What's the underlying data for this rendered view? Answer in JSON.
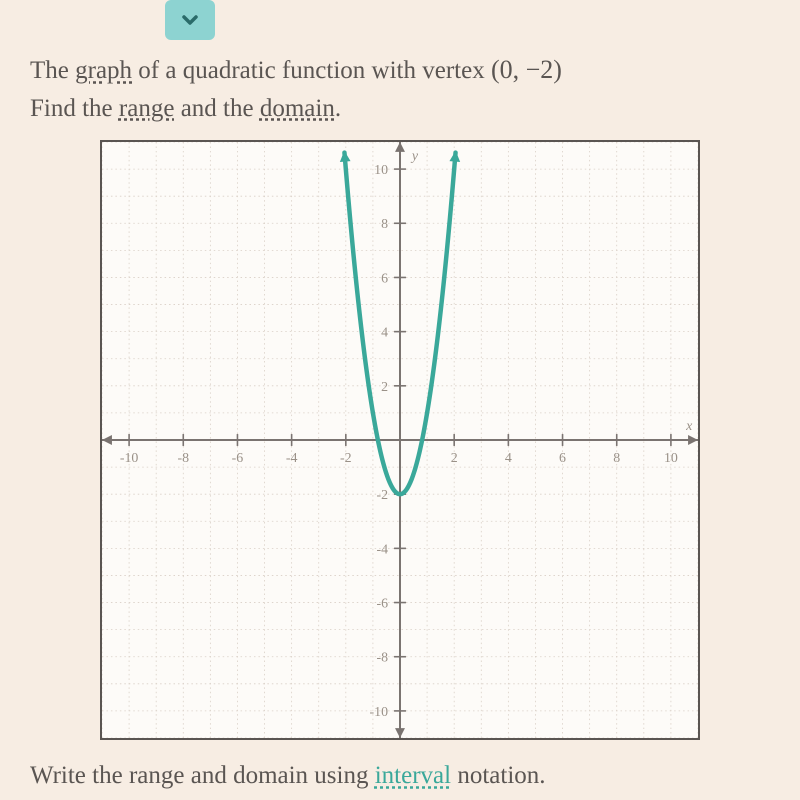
{
  "dropdown": {
    "icon": "chevron-down"
  },
  "question": {
    "line1_pre": "The ",
    "word_graph": "graph",
    "line1_mid": " of a quadratic function with vertex ",
    "vertex": "(0, −2)",
    "line2_pre": "Find the ",
    "word_range": "range",
    "line2_mid": " and the ",
    "word_domain": "domain",
    "line2_end": "."
  },
  "bottom": {
    "pre": "Write the range and domain using ",
    "word_interval": "interval",
    "post": " notation."
  },
  "chart": {
    "type": "line",
    "background_color": "#fdfbf8",
    "grid_color": "#d9cfc6",
    "axis_color": "#7a7370",
    "tick_color": "#7a7370",
    "label_color": "#9a9188",
    "label_fontsize": 14,
    "axis_label_fontsize": 14,
    "xlim": [
      -11,
      11
    ],
    "ylim": [
      -11,
      11
    ],
    "major_ticks": [
      -10,
      -8,
      -6,
      -4,
      -2,
      2,
      4,
      6,
      8,
      10
    ],
    "minor_step": 1,
    "x_axis_label": "x",
    "y_axis_label": "y",
    "parabola": {
      "color": "#3aa89a",
      "width": 4.5,
      "vertex": [
        0,
        -2
      ],
      "coefficient": 3.0,
      "x_range": [
        -2.05,
        2.05
      ],
      "arrowhead_size": 9
    }
  }
}
